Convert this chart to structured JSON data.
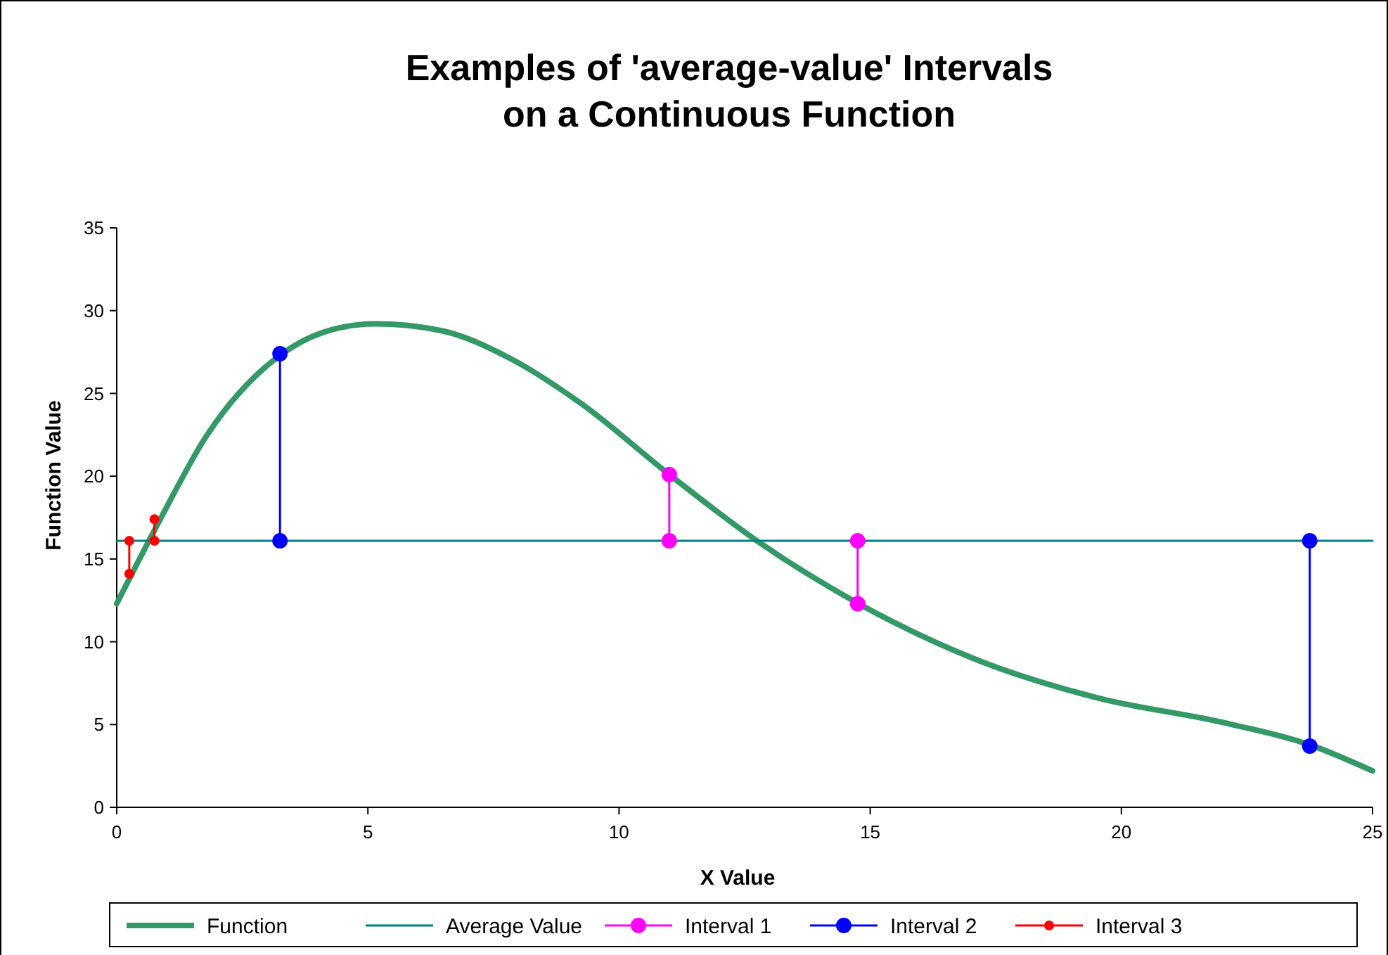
{
  "chart_data": {
    "type": "line",
    "title": "Examples of 'average-value' Intervals\non a Continuous Function",
    "xlabel": "X Value",
    "ylabel": "Function Value",
    "xlim": [
      0,
      25
    ],
    "xticks": [
      0,
      5,
      10,
      15,
      20,
      25
    ],
    "ylim": [
      0,
      35
    ],
    "yticks": [
      0,
      5,
      10,
      15,
      20,
      25,
      30,
      35
    ],
    "grid": false,
    "legend": "bottom",
    "series": [
      {
        "name": "Function",
        "color": "#339966",
        "marker": "none",
        "x": [
          0,
          0.85,
          1.78,
          3.25,
          4.12,
          5.14,
          6.45,
          7.84,
          9.24,
          11,
          12.79,
          14.77,
          17.13,
          19.54,
          22.06,
          23.82,
          25
        ],
        "values": [
          12.3,
          17.3,
          22.4,
          27.3,
          28.7,
          29.2,
          28.8,
          27.1,
          24.4,
          20.1,
          16.0,
          12.3,
          8.9,
          6.6,
          5.1,
          3.7,
          2.2
        ]
      },
      {
        "name": "Average Value",
        "color": "#008080",
        "marker": "none",
        "x": [
          0,
          25
        ],
        "values": [
          16.1,
          16.1
        ]
      },
      {
        "name": "Interval 1",
        "color": "#ff00ff",
        "marker": "circle",
        "x": [
          11,
          11
        ],
        "values": [
          20.1,
          16.1
        ]
      },
      {
        "color": "#ff00ff",
        "marker": "circle",
        "x": [
          14.75,
          14.75
        ],
        "values": [
          16.1,
          12.3
        ]
      },
      {
        "name": "Interval 2",
        "color": "#0000ff",
        "marker": "circle",
        "x": [
          3.25,
          3.25
        ],
        "values": [
          27.4,
          16.1
        ]
      },
      {
        "color": "#0000ff",
        "marker": "circle",
        "x": [
          23.75,
          23.75
        ],
        "values": [
          16.1,
          3.7
        ]
      },
      {
        "name": "Interval 3",
        "color": "#ff0000",
        "marker": "circle",
        "x": [
          0.25,
          0.25
        ],
        "values": [
          16.1,
          14.1
        ]
      },
      {
        "color": "#ff0000",
        "marker": "circle",
        "x": [
          0.75,
          0.75
        ],
        "values": [
          16.1,
          17.4
        ]
      }
    ]
  }
}
